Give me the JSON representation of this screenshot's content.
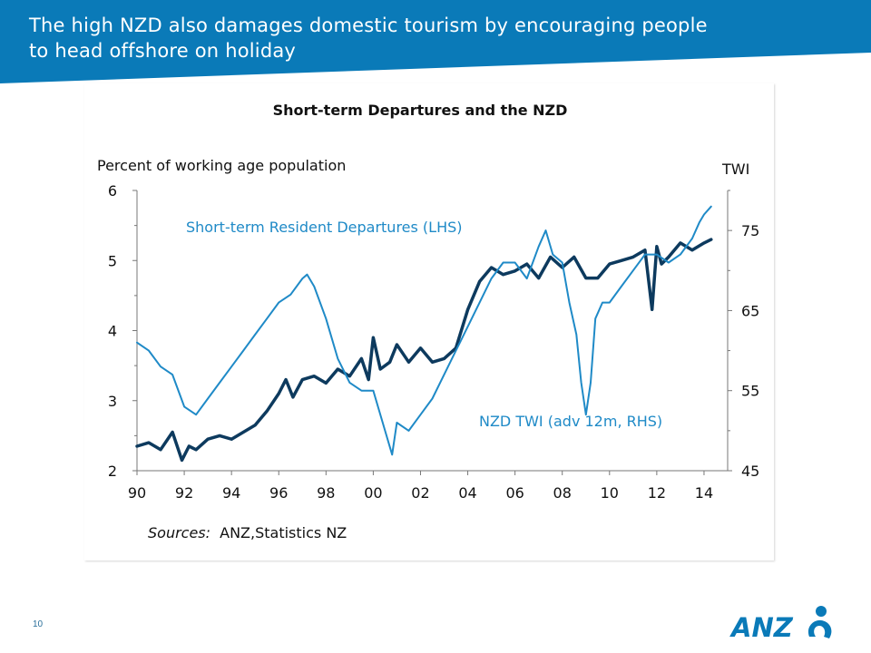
{
  "slide": {
    "title_line1": "The high NZD also damages domestic tourism by encouraging people",
    "title_line2": "to head offshore on holiday",
    "page_number": "10",
    "logo_text": "ANZ",
    "brand_color": "#0a7ab8"
  },
  "chart_data": {
    "type": "line",
    "title": "Short-term Departures and the NZD",
    "ylabel_left": "Percent of working age population",
    "ylabel_right": "TWI",
    "ylim_left": [
      2,
      6
    ],
    "ylim_right": [
      45,
      80
    ],
    "xlim": [
      1990,
      2015
    ],
    "x_ticks": [
      "90",
      "92",
      "94",
      "96",
      "98",
      "00",
      "02",
      "04",
      "06",
      "08",
      "10",
      "12",
      "14"
    ],
    "y_ticks_left": [
      "2",
      "3",
      "4",
      "5",
      "6"
    ],
    "y_ticks_right": [
      "45",
      "55",
      "65",
      "75"
    ],
    "sources_label": "Sources:",
    "sources_text": "ANZ,Statistics NZ",
    "legend": "inline labels",
    "series": [
      {
        "name": "Short-term Resident Departures (LHS)",
        "axis": "left",
        "color": "#0d3a5e",
        "x": [
          1990.0,
          1990.5,
          1991.0,
          1991.5,
          1991.9,
          1992.2,
          1992.5,
          1993.0,
          1993.5,
          1994.0,
          1994.5,
          1995.0,
          1995.5,
          1996.0,
          1996.3,
          1996.6,
          1997.0,
          1997.5,
          1998.0,
          1998.5,
          1999.0,
          1999.5,
          1999.8,
          2000.0,
          2000.3,
          2000.7,
          2001.0,
          2001.5,
          2002.0,
          2002.5,
          2003.0,
          2003.5,
          2004.0,
          2004.5,
          2005.0,
          2005.5,
          2006.0,
          2006.5,
          2007.0,
          2007.5,
          2008.0,
          2008.5,
          2009.0,
          2009.5,
          2010.0,
          2010.5,
          2011.0,
          2011.5,
          2011.8,
          2012.0,
          2012.2,
          2012.5,
          2013.0,
          2013.5,
          2014.0,
          2014.3
        ],
        "values": [
          2.35,
          2.4,
          2.3,
          2.55,
          2.15,
          2.35,
          2.3,
          2.45,
          2.5,
          2.45,
          2.55,
          2.65,
          2.85,
          3.1,
          3.3,
          3.05,
          3.3,
          3.35,
          3.25,
          3.45,
          3.35,
          3.6,
          3.3,
          3.9,
          3.45,
          3.55,
          3.8,
          3.55,
          3.75,
          3.55,
          3.6,
          3.75,
          4.3,
          4.7,
          4.9,
          4.8,
          4.85,
          4.95,
          4.75,
          5.05,
          4.9,
          5.05,
          4.75,
          4.75,
          4.95,
          5.0,
          5.05,
          5.15,
          4.3,
          5.2,
          4.95,
          5.05,
          5.25,
          5.15,
          5.25,
          5.3
        ]
      },
      {
        "name": "NZD TWI (adv 12m, RHS)",
        "axis": "right",
        "color": "#1f8ac7",
        "x": [
          1990.0,
          1990.5,
          1991.0,
          1991.5,
          1992.0,
          1992.5,
          1993.0,
          1993.5,
          1994.0,
          1994.5,
          1995.0,
          1995.5,
          1996.0,
          1996.5,
          1997.0,
          1997.2,
          1997.5,
          1998.0,
          1998.5,
          1999.0,
          1999.5,
          2000.0,
          2000.5,
          2000.8,
          2001.0,
          2001.5,
          2002.0,
          2002.5,
          2003.0,
          2003.5,
          2004.0,
          2004.5,
          2005.0,
          2005.5,
          2006.0,
          2006.5,
          2007.0,
          2007.3,
          2007.6,
          2008.0,
          2008.3,
          2008.6,
          2008.8,
          2009.0,
          2009.2,
          2009.4,
          2009.7,
          2010.0,
          2010.5,
          2011.0,
          2011.5,
          2012.0,
          2012.5,
          2013.0,
          2013.5,
          2013.8,
          2014.0,
          2014.3
        ],
        "values": [
          61,
          60,
          58,
          57,
          53,
          52,
          54,
          56,
          58,
          60,
          62,
          64,
          66,
          67,
          69,
          69.5,
          68,
          64,
          59,
          56,
          55,
          55,
          50,
          47,
          51,
          50,
          52,
          54,
          57,
          60,
          63,
          66,
          69,
          71,
          71,
          69,
          73,
          75,
          72,
          71,
          66,
          62,
          56,
          52,
          56,
          64,
          66,
          66,
          68,
          70,
          72,
          72,
          71,
          72,
          74,
          76,
          77,
          78
        ]
      }
    ]
  }
}
